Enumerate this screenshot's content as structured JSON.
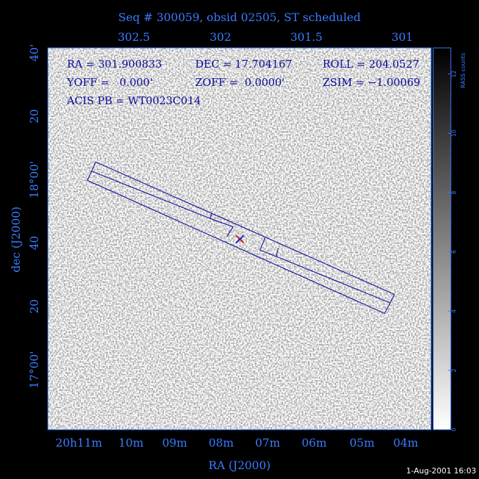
{
  "title": "Seq # 300059, obsid 02505, ST scheduled",
  "top_axis": {
    "ticks": [
      "302.5",
      "302",
      "301.5",
      "301"
    ]
  },
  "left_axis": {
    "label": "dec (J2000)",
    "ticks": [
      "40'",
      "20",
      "18°00'",
      "40",
      "20",
      "17°00'"
    ]
  },
  "bottom_axis": {
    "label": "RA (J2000)",
    "ticks": [
      "20h11m",
      "10m",
      "09m",
      "08m",
      "07m",
      "06m",
      "05m",
      "04m"
    ]
  },
  "info": {
    "ra": "RA = 301.900833",
    "dec": "DEC = 17.704167",
    "roll": "ROLL = 204.0527",
    "yoff": "YOFF =   0.000'",
    "zoff": "ZOFF =  0.0000'",
    "zsim": "ZSIM = −1.00069",
    "acis": "ACIS PB = WT0023C014"
  },
  "colorbar": {
    "label": "RASS counts",
    "ticks": [
      0,
      2,
      4,
      6,
      8,
      10,
      12
    ]
  },
  "footer": "1-Aug-2001 16:03"
}
